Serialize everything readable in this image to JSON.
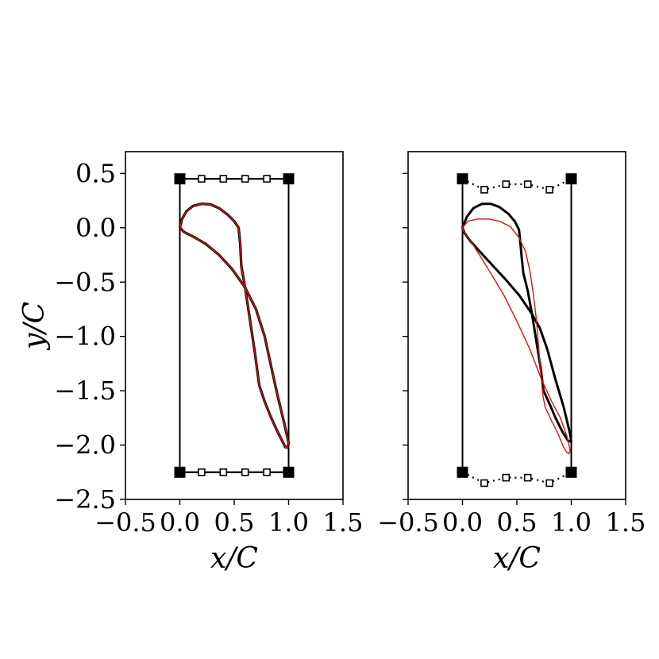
{
  "chart_data": [
    {
      "type": "line",
      "xlabel": "x/C",
      "ylabel": "y/C",
      "xlim": [
        -0.5,
        1.5
      ],
      "ylim": [
        -2.5,
        0.7
      ],
      "xticks": [
        -0.5,
        0.0,
        0.5,
        1.0,
        1.5
      ],
      "xtick_labels": [
        "−0.5",
        "0.0",
        "0.5",
        "1.0",
        "1.5"
      ],
      "yticks": [
        0.5,
        0.0,
        -0.5,
        -1.0,
        -1.5,
        -2.0,
        -2.5
      ],
      "ytick_labels": [
        "0.5",
        "0.0",
        "−0.5",
        "−1.0",
        "−1.5",
        "−2.0",
        "−2.5"
      ],
      "grid": false,
      "box": {
        "x": [
          0,
          1
        ],
        "y_top": 0.45,
        "y_bottom": -2.25
      },
      "corner_points": [
        [
          0,
          0.45
        ],
        [
          1,
          0.45
        ],
        [
          0,
          -2.25
        ],
        [
          1,
          -2.25
        ]
      ],
      "top_control_points": [
        [
          0.2,
          0.45
        ],
        [
          0.4,
          0.45
        ],
        [
          0.6,
          0.45
        ],
        [
          0.8,
          0.45
        ]
      ],
      "bottom_control_points": [
        [
          0.2,
          -2.25
        ],
        [
          0.4,
          -2.25
        ],
        [
          0.6,
          -2.25
        ],
        [
          0.8,
          -2.25
        ]
      ],
      "series": [
        {
          "color": "#000000",
          "points": [
            [
              0.0,
              0.0
            ],
            [
              0.02,
              0.08
            ],
            [
              0.06,
              0.15
            ],
            [
              0.12,
              0.2
            ],
            [
              0.2,
              0.22
            ],
            [
              0.28,
              0.215
            ],
            [
              0.36,
              0.18
            ],
            [
              0.44,
              0.12
            ],
            [
              0.5,
              0.06
            ],
            [
              0.54,
              0.0
            ],
            [
              0.555,
              -0.15
            ],
            [
              0.565,
              -0.35
            ],
            [
              0.6,
              -0.55
            ],
            [
              0.63,
              -0.75
            ],
            [
              0.66,
              -0.95
            ],
            [
              0.69,
              -1.15
            ],
            [
              0.71,
              -1.3
            ],
            [
              0.73,
              -1.45
            ],
            [
              0.78,
              -1.6
            ],
            [
              0.84,
              -1.75
            ],
            [
              0.9,
              -1.88
            ],
            [
              0.95,
              -1.98
            ],
            [
              0.97,
              -2.02
            ],
            [
              0.99,
              -2.02
            ],
            [
              1.0,
              -1.98
            ],
            [
              0.96,
              -1.8
            ],
            [
              0.9,
              -1.55
            ],
            [
              0.84,
              -1.28
            ],
            [
              0.78,
              -1.0
            ],
            [
              0.7,
              -0.75
            ],
            [
              0.6,
              -0.55
            ],
            [
              0.48,
              -0.38
            ],
            [
              0.36,
              -0.25
            ],
            [
              0.24,
              -0.15
            ],
            [
              0.12,
              -0.08
            ],
            [
              0.04,
              -0.04
            ],
            [
              0.0,
              0.0
            ]
          ]
        },
        {
          "color": "#dd1111",
          "points": [
            [
              0.0,
              0.0
            ],
            [
              0.02,
              0.08
            ],
            [
              0.06,
              0.15
            ],
            [
              0.12,
              0.2
            ],
            [
              0.2,
              0.22
            ],
            [
              0.28,
              0.215
            ],
            [
              0.36,
              0.18
            ],
            [
              0.44,
              0.12
            ],
            [
              0.5,
              0.06
            ],
            [
              0.54,
              0.0
            ],
            [
              0.555,
              -0.15
            ],
            [
              0.565,
              -0.35
            ],
            [
              0.6,
              -0.55
            ],
            [
              0.63,
              -0.75
            ],
            [
              0.66,
              -0.95
            ],
            [
              0.69,
              -1.15
            ],
            [
              0.71,
              -1.3
            ],
            [
              0.73,
              -1.45
            ],
            [
              0.78,
              -1.6
            ],
            [
              0.84,
              -1.75
            ],
            [
              0.9,
              -1.88
            ],
            [
              0.95,
              -1.98
            ],
            [
              0.97,
              -2.02
            ],
            [
              0.99,
              -2.02
            ],
            [
              1.0,
              -1.98
            ],
            [
              0.96,
              -1.8
            ],
            [
              0.9,
              -1.55
            ],
            [
              0.84,
              -1.28
            ],
            [
              0.78,
              -1.0
            ],
            [
              0.7,
              -0.75
            ],
            [
              0.6,
              -0.55
            ],
            [
              0.48,
              -0.38
            ],
            [
              0.36,
              -0.25
            ],
            [
              0.24,
              -0.15
            ],
            [
              0.12,
              -0.08
            ],
            [
              0.04,
              -0.04
            ],
            [
              0.0,
              0.0
            ]
          ]
        }
      ]
    },
    {
      "type": "line",
      "xlabel": "x/C",
      "ylabel": "",
      "xlim": [
        -0.5,
        1.5
      ],
      "ylim": [
        -2.5,
        0.7
      ],
      "xticks": [
        -0.5,
        0.0,
        0.5,
        1.0,
        1.5
      ],
      "xtick_labels": [
        "−0.5",
        "0.0",
        "0.5",
        "1.0",
        "1.5"
      ],
      "yticks": [
        0.5,
        0.0,
        -0.5,
        -1.0,
        -1.5,
        -2.0,
        -2.5
      ],
      "ytick_labels": [],
      "grid": false,
      "box": {
        "x": [
          0,
          1
        ],
        "y_top": 0.45,
        "y_bottom": -2.25
      },
      "corner_points": [
        [
          0,
          0.45
        ],
        [
          1,
          0.45
        ],
        [
          0,
          -2.25
        ],
        [
          1,
          -2.25
        ]
      ],
      "top_control_points": [
        [
          0.2,
          0.35
        ],
        [
          0.4,
          0.4
        ],
        [
          0.6,
          0.4
        ],
        [
          0.8,
          0.35
        ]
      ],
      "bottom_control_points": [
        [
          0.2,
          -2.35
        ],
        [
          0.4,
          -2.3
        ],
        [
          0.6,
          -2.3
        ],
        [
          0.8,
          -2.35
        ]
      ],
      "series": [
        {
          "color": "#000000",
          "points": [
            [
              0.0,
              0.0
            ],
            [
              0.04,
              0.1
            ],
            [
              0.1,
              0.18
            ],
            [
              0.18,
              0.22
            ],
            [
              0.26,
              0.22
            ],
            [
              0.34,
              0.19
            ],
            [
              0.42,
              0.13
            ],
            [
              0.48,
              0.06
            ],
            [
              0.52,
              -0.02
            ],
            [
              0.53,
              -0.12
            ],
            [
              0.545,
              -0.28
            ],
            [
              0.56,
              -0.42
            ],
            [
              0.6,
              -0.58
            ],
            [
              0.64,
              -0.8
            ],
            [
              0.68,
              -1.05
            ],
            [
              0.72,
              -1.3
            ],
            [
              0.745,
              -1.5
            ],
            [
              0.8,
              -1.62
            ],
            [
              0.86,
              -1.76
            ],
            [
              0.92,
              -1.88
            ],
            [
              0.97,
              -1.96
            ],
            [
              1.0,
              -1.97
            ],
            [
              0.99,
              -1.9
            ],
            [
              0.93,
              -1.65
            ],
            [
              0.85,
              -1.38
            ],
            [
              0.78,
              -1.12
            ],
            [
              0.71,
              -0.92
            ],
            [
              0.63,
              -0.78
            ],
            [
              0.52,
              -0.62
            ],
            [
              0.4,
              -0.48
            ],
            [
              0.28,
              -0.35
            ],
            [
              0.16,
              -0.22
            ],
            [
              0.07,
              -0.12
            ],
            [
              0.02,
              -0.05
            ],
            [
              0.0,
              0.0
            ]
          ]
        },
        {
          "color": "#dd1111",
          "points": [
            [
              0.0,
              0.0
            ],
            [
              0.05,
              0.06
            ],
            [
              0.14,
              0.08
            ],
            [
              0.24,
              0.08
            ],
            [
              0.34,
              0.06
            ],
            [
              0.44,
              0.01
            ],
            [
              0.52,
              -0.09
            ],
            [
              0.58,
              -0.22
            ],
            [
              0.62,
              -0.4
            ],
            [
              0.65,
              -0.6
            ],
            [
              0.68,
              -0.85
            ],
            [
              0.7,
              -1.1
            ],
            [
              0.72,
              -1.35
            ],
            [
              0.74,
              -1.55
            ],
            [
              0.76,
              -1.65
            ],
            [
              0.82,
              -1.78
            ],
            [
              0.88,
              -1.9
            ],
            [
              0.93,
              -2.02
            ],
            [
              0.96,
              -2.07
            ],
            [
              0.98,
              -2.08
            ],
            [
              0.99,
              -2.05
            ],
            [
              0.96,
              -1.92
            ],
            [
              0.9,
              -1.75
            ],
            [
              0.82,
              -1.6
            ],
            [
              0.72,
              -1.38
            ],
            [
              0.62,
              -1.12
            ],
            [
              0.5,
              -0.86
            ],
            [
              0.38,
              -0.62
            ],
            [
              0.26,
              -0.42
            ],
            [
              0.15,
              -0.24
            ],
            [
              0.06,
              -0.1
            ],
            [
              0.01,
              -0.03
            ],
            [
              0.0,
              0.0
            ]
          ]
        }
      ]
    }
  ]
}
